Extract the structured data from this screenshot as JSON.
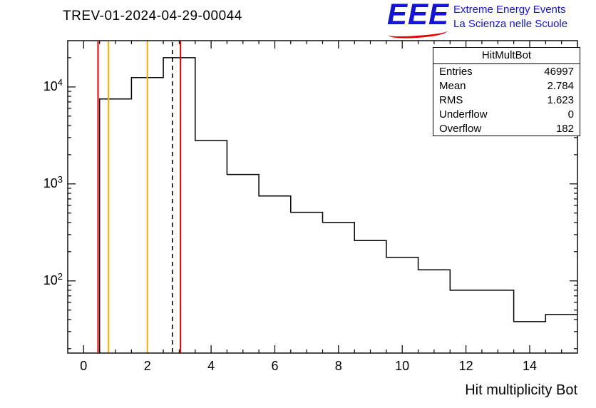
{
  "page": {
    "title": "TREV-01-2024-04-29-00044"
  },
  "logo": {
    "eee": "EEE",
    "line1": "Extreme Energy Events",
    "line2": "La Scienza nelle Scuole",
    "blue": "#1414d6",
    "red": "#e10000"
  },
  "stats": {
    "title": "HitMultBot",
    "rows": [
      {
        "label": "Entries",
        "value": "46997"
      },
      {
        "label": "Mean",
        "value": "2.784"
      },
      {
        "label": "RMS",
        "value": "1.623"
      },
      {
        "label": "Underflow",
        "value": "0"
      },
      {
        "label": "Overflow",
        "value": "182"
      }
    ]
  },
  "chart_data": {
    "type": "bar",
    "title": "TREV-01-2024-04-29-00044",
    "xlabel": "Hit multiplicity Bot",
    "ylabel": "",
    "y_scale": "log",
    "xlim": [
      -0.5,
      15.5
    ],
    "ylim": [
      18,
      30000
    ],
    "bin_width": 1,
    "bin_centers": [
      1,
      2,
      3,
      4,
      5,
      6,
      7,
      8,
      9,
      10,
      11,
      12,
      13,
      14,
      15
    ],
    "counts": [
      7500,
      12500,
      20000,
      2800,
      1250,
      750,
      510,
      400,
      260,
      175,
      130,
      80,
      80,
      38,
      45
    ],
    "x_major_ticks": [
      0,
      2,
      4,
      6,
      8,
      10,
      12,
      14
    ],
    "x_minor_step": 0.5,
    "y_major_ticks": [
      100,
      1000,
      10000
    ],
    "line_color": "#000000",
    "marker_lines": [
      {
        "x": 0.45,
        "color": "#dd0000",
        "style": "solid",
        "name": "red-marker-left"
      },
      {
        "x": 0.78,
        "color": "#ffaa00",
        "style": "solid",
        "name": "yellow-marker-left"
      },
      {
        "x": 2.0,
        "color": "#ffaa00",
        "style": "solid",
        "name": "yellow-marker-right"
      },
      {
        "x": 2.784,
        "color": "#000000",
        "style": "dashed",
        "name": "mean-dashed-marker"
      },
      {
        "x": 3.04,
        "color": "#dd0000",
        "style": "solid",
        "name": "red-marker-right"
      }
    ],
    "grid": false,
    "legend": "none (stats box top-right)"
  }
}
